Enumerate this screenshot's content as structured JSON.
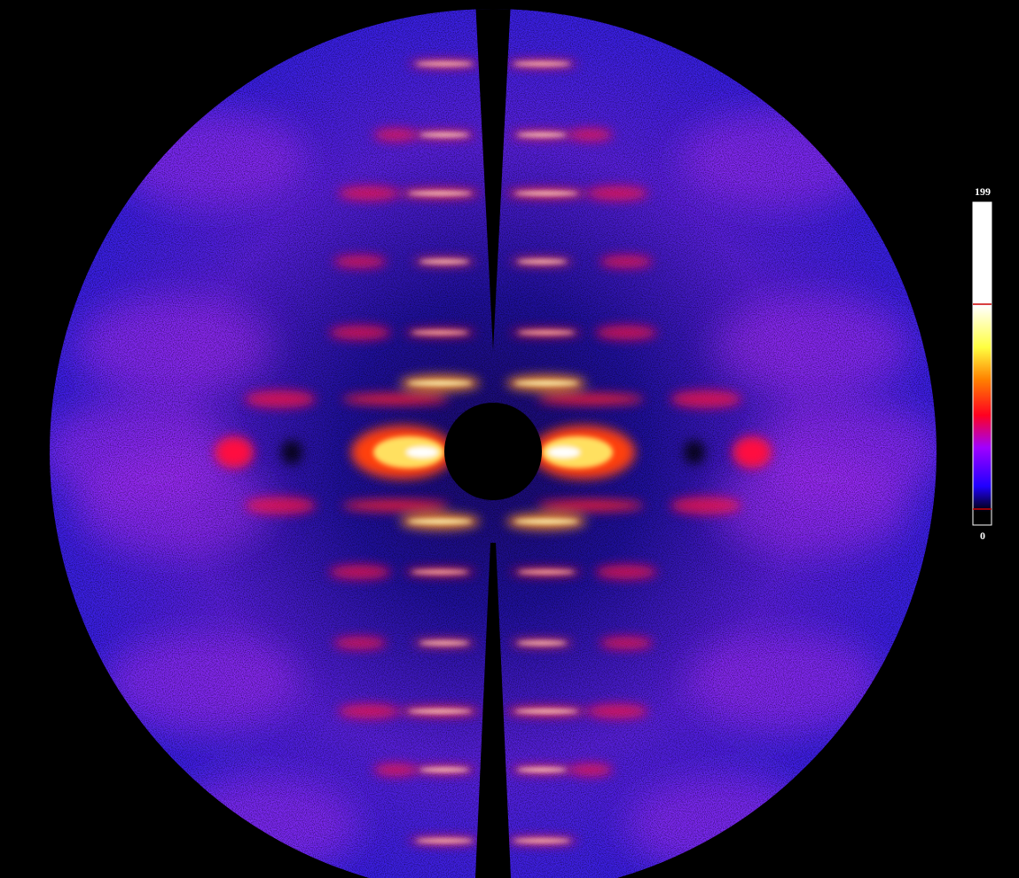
{
  "colorbar": {
    "max": 199,
    "min": 0
  }
}
